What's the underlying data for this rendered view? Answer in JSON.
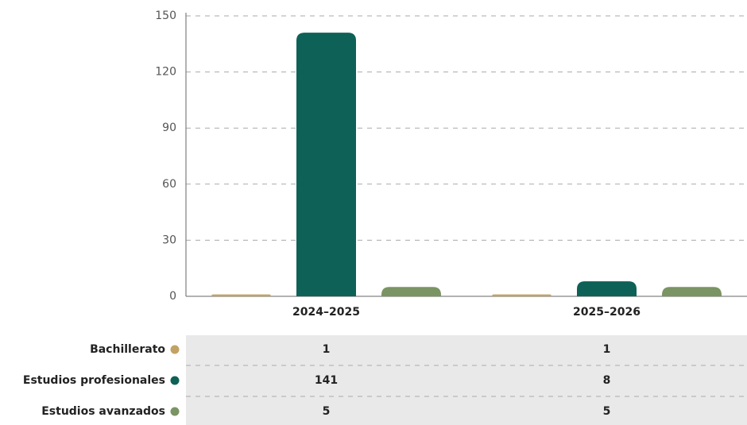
{
  "chart_data": {
    "type": "bar",
    "categories": [
      "2024–2025",
      "2025–2026"
    ],
    "series": [
      {
        "name": "Bachillerato",
        "color": "#c2a264",
        "values": [
          1,
          1
        ]
      },
      {
        "name": "Estudios profesionales",
        "color": "#0e6157",
        "values": [
          141,
          8
        ]
      },
      {
        "name": "Estudios avanzados",
        "color": "#7a9464",
        "values": [
          5,
          5
        ]
      }
    ],
    "ylim": [
      0,
      150
    ],
    "yticks": [
      0,
      30,
      60,
      90,
      120,
      150
    ],
    "grid": true
  }
}
